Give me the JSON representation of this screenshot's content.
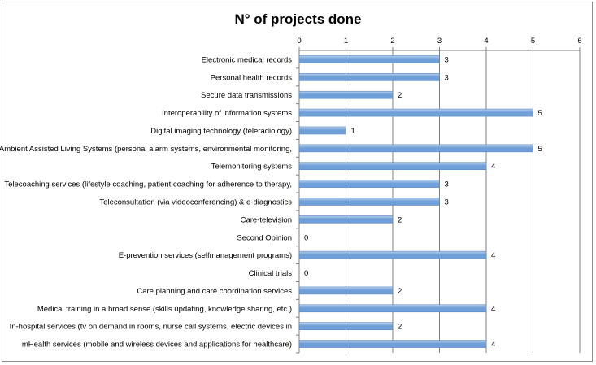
{
  "chart_data": {
    "type": "bar",
    "orientation": "horizontal",
    "title": "N° of projects done",
    "xlabel": "",
    "ylabel": "",
    "xlim": [
      0,
      6
    ],
    "ticks": [
      "0",
      "1",
      "2",
      "3",
      "4",
      "5",
      "6"
    ],
    "axis_position": "top",
    "grid": true,
    "legend": "none",
    "bar_color": "#6f9fd8",
    "bar_color_light": "#b9d2ef",
    "categories": [
      "Electronic medical records",
      "Personal health records",
      "Secure data transmissions",
      "Interoperability of information systems",
      "Digital imaging technology (teleradiology)",
      "Ambient Assisted Living Systems (personal alarm systems, environmental monitoring,",
      "Telemonitoring systems",
      "Telecoaching services (lifestyle coaching, patient coaching for adherence to therapy,",
      "Teleconsultation (via videoconferencing) & e-diagnostics",
      "Care-television",
      "Second Opinion",
      "E-prevention services (selfmanagement programs)",
      "Clinical trials",
      "Care planning and care coordination services",
      "Medical training in a broad sense (skills updating, knowledge sharing, etc.)",
      "In-hospital services (tv on demand in rooms, nurse call systems, electric devices in",
      "mHealth services (mobile and wireless devices and applications for healthcare)"
    ],
    "values": [
      3,
      3,
      2,
      5,
      1,
      5,
      4,
      3,
      3,
      2,
      0,
      4,
      0,
      2,
      4,
      2,
      4
    ],
    "value_labels": [
      "3",
      "3",
      "2",
      "5",
      "1",
      "5",
      "4",
      "3",
      "3",
      "2",
      "0",
      "4",
      "0",
      "2",
      "4",
      "2",
      "4"
    ]
  }
}
